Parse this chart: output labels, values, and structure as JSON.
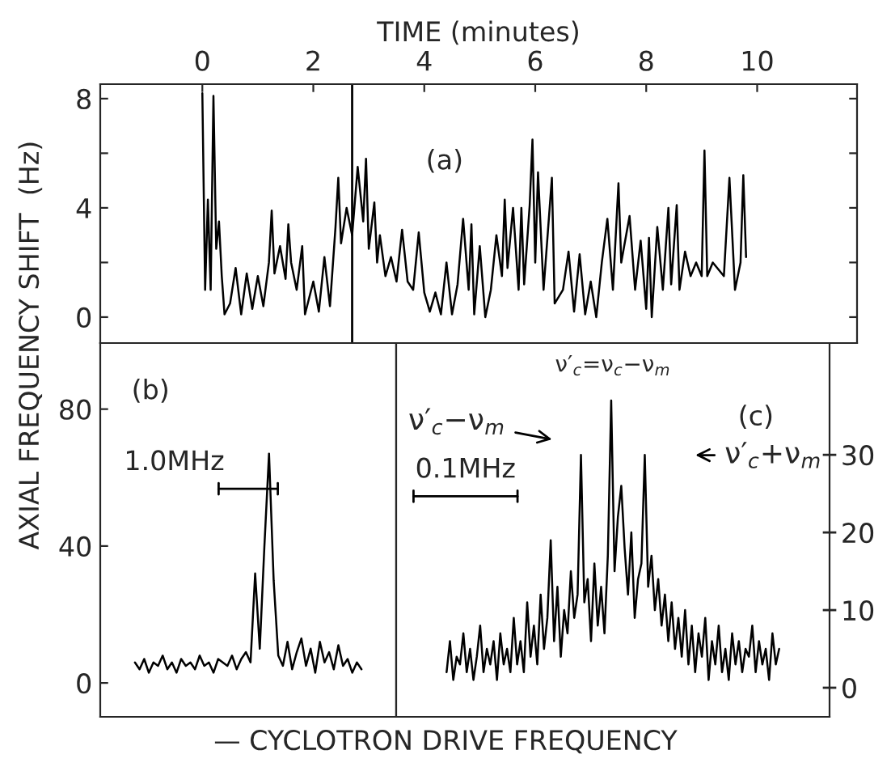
{
  "chart_data": [
    {
      "type": "line",
      "xlabel": "TIME (minutes)",
      "ylabel": "AXIAL FREQUENCY SHIFT  (Hz)",
      "color": "#000000",
      "marker": "none",
      "line_style": "solid",
      "grid": false,
      "x": [
        0,
        0.05,
        0.1,
        0.15,
        0.2,
        0.25,
        0.3,
        0.35,
        0.4,
        0.5,
        0.6,
        0.7,
        0.8,
        0.9,
        1.0,
        1.1,
        1.2,
        1.25,
        1.3,
        1.4,
        1.5,
        1.55,
        1.6,
        1.7,
        1.8,
        1.85,
        2.0,
        2.1,
        2.2,
        2.3,
        2.4,
        2.45,
        2.5,
        2.6,
        2.7,
        2.8,
        2.9,
        2.95,
        3.0,
        3.1,
        3.15,
        3.2,
        3.3,
        3.4,
        3.5,
        3.6,
        3.7,
        3.8,
        3.9,
        4.0,
        4.1,
        4.2,
        4.3,
        4.4,
        4.5,
        4.6,
        4.7,
        4.8,
        4.85,
        4.9,
        5.0,
        5.1,
        5.2,
        5.3,
        5.4,
        5.45,
        5.5,
        5.6,
        5.7,
        5.75,
        5.8,
        5.9,
        5.95,
        6.0,
        6.05,
        6.15,
        6.3,
        6.35,
        6.5,
        6.6,
        6.7,
        6.8,
        6.9,
        7.0,
        7.1,
        7.2,
        7.3,
        7.4,
        7.5,
        7.55,
        7.7,
        7.8,
        7.9,
        8.0,
        8.05,
        8.1,
        8.2,
        8.3,
        8.4,
        8.45,
        8.55,
        8.6,
        8.7,
        8.8,
        8.9,
        9.0,
        9.05,
        9.1,
        9.2,
        9.4,
        9.5,
        9.6,
        9.7,
        9.75,
        9.8
      ],
      "values": [
        8.2,
        1.0,
        4.3,
        1.0,
        8.1,
        2.5,
        3.5,
        1.5,
        0.1,
        0.5,
        1.8,
        0.1,
        1.6,
        0.3,
        1.5,
        0.4,
        2.0,
        3.9,
        1.6,
        2.6,
        1.4,
        3.4,
        2.0,
        1.0,
        2.6,
        0.1,
        1.3,
        0.2,
        2.2,
        0.4,
        3.3,
        5.1,
        2.7,
        4.0,
        3.0,
        5.5,
        3.5,
        5.8,
        2.5,
        4.2,
        2.0,
        3.0,
        1.5,
        2.2,
        1.3,
        3.2,
        1.3,
        1.0,
        3.1,
        0.9,
        0.2,
        0.9,
        0.1,
        2.0,
        0.1,
        1.2,
        3.6,
        1.0,
        3.4,
        0.1,
        2.6,
        0.0,
        1.0,
        3.0,
        1.5,
        4.3,
        1.8,
        4.0,
        1.0,
        4.0,
        1.2,
        4.1,
        6.5,
        2.0,
        5.3,
        1.0,
        5.1,
        0.5,
        1.0,
        2.4,
        0.2,
        2.3,
        0.1,
        1.3,
        0.0,
        2.0,
        3.6,
        1.0,
        4.9,
        2.0,
        3.7,
        1.0,
        2.8,
        0.3,
        2.9,
        0.0,
        3.3,
        1.0,
        4.0,
        1.2,
        4.1,
        1.0,
        2.4,
        1.5,
        2.0,
        1.5,
        6.1,
        1.5,
        2.0,
        1.5,
        5.1,
        1.0,
        2.0,
        5.2,
        2.2
      ],
      "xlim": [
        -1.84,
        11.8
      ],
      "xticks": [
        0,
        2,
        4,
        6,
        8,
        10
      ],
      "ylim": [
        -0.95,
        8.53
      ],
      "yticks": [
        0,
        {
          "value": 2,
          "label": null
        },
        4,
        {
          "value": 6,
          "label": null
        },
        8
      ],
      "ref_lines": [
        {
          "axis": "x",
          "value": 2.7,
          "label": null
        }
      ],
      "annotations": [
        "(a)"
      ]
    },
    {
      "type": "line",
      "xlabel": "— CYCLOTRON DRIVE FREQUENCY",
      "color": "#000000",
      "marker": "none",
      "line_style": "solid",
      "grid": false,
      "tick_labels": "y",
      "categories": [
        null,
        null,
        null,
        null,
        null,
        null,
        null,
        null,
        null,
        null,
        null,
        null,
        null,
        null,
        null,
        null,
        null,
        null,
        null,
        null,
        null,
        null,
        null,
        null,
        null,
        null,
        null,
        null,
        null,
        null,
        null,
        null,
        null,
        null,
        null,
        null,
        null,
        null,
        null,
        null,
        null,
        null,
        null,
        null,
        null,
        null,
        null,
        null,
        null,
        null
      ],
      "values": [
        6,
        4,
        7,
        3,
        6,
        5,
        8,
        4,
        6,
        3,
        7,
        5,
        6,
        4,
        8,
        5,
        6,
        3,
        7,
        6,
        5,
        8,
        4,
        7,
        9,
        6,
        32,
        10,
        40,
        67,
        30,
        8,
        5,
        12,
        4,
        9,
        13,
        5,
        10,
        3,
        12,
        6,
        9,
        4,
        11,
        5,
        7,
        3,
        6,
        4
      ],
      "ylim": [
        -9.9,
        99.3
      ],
      "yticks": [
        0,
        40,
        80
      ],
      "annotations": [
        "(b)",
        "1.0MHz"
      ]
    },
    {
      "type": "line",
      "color": "#000000",
      "marker": "none",
      "line_style": "solid",
      "grid": false,
      "tick_labels": "y",
      "categories": [
        null,
        null,
        null,
        null,
        null,
        null,
        null,
        null,
        null,
        null,
        null,
        null,
        null,
        null,
        null,
        null,
        null,
        null,
        null,
        null,
        null,
        null,
        null,
        null,
        null,
        null,
        null,
        null,
        null,
        null,
        null,
        null,
        null,
        null,
        null,
        null,
        null,
        null,
        null,
        null,
        null,
        null,
        null,
        null,
        null,
        null,
        null,
        null,
        null,
        null,
        null,
        null,
        null,
        null,
        null,
        null,
        null,
        null,
        null,
        null,
        null,
        null,
        null,
        null,
        null,
        null,
        null,
        null,
        null,
        null,
        null,
        null,
        null,
        null,
        null,
        null,
        null,
        null,
        null,
        null,
        null,
        null,
        null,
        null,
        null,
        null,
        null,
        null,
        null,
        null,
        null,
        null,
        null,
        null,
        null,
        null,
        null,
        null,
        null,
        null
      ],
      "values": [
        2,
        6,
        1,
        4,
        3,
        7,
        2,
        5,
        1,
        4,
        8,
        2,
        5,
        3,
        6,
        1,
        7,
        3,
        5,
        2,
        9,
        3,
        6,
        2,
        11,
        4,
        8,
        3,
        12,
        5,
        9,
        19,
        6,
        13,
        4,
        10,
        7,
        15,
        9,
        12,
        30,
        11,
        14,
        6,
        16,
        8,
        13,
        7,
        17,
        37,
        15,
        22,
        26,
        18,
        12,
        20,
        9,
        14,
        16,
        30,
        13,
        17,
        10,
        14,
        8,
        12,
        6,
        11,
        5,
        9,
        4,
        10,
        3,
        8,
        2,
        7,
        4,
        9,
        1,
        6,
        3,
        8,
        2,
        5,
        1,
        7,
        3,
        6,
        2,
        5,
        4,
        8,
        2,
        6,
        3,
        5,
        1,
        7,
        3,
        5
      ],
      "ylim": [
        -3.75,
        44.4
      ],
      "yticks": [
        0,
        10,
        20,
        30
      ],
      "annotations": [
        "(c)",
        "0.1MHz",
        "ν′$_{c}$−ν$_{m}$",
        "ν′$_{c}$=ν$_{c}$−ν$_{m}$",
        "ν′$_{c}$+ν$_{m}$"
      ]
    }
  ]
}
